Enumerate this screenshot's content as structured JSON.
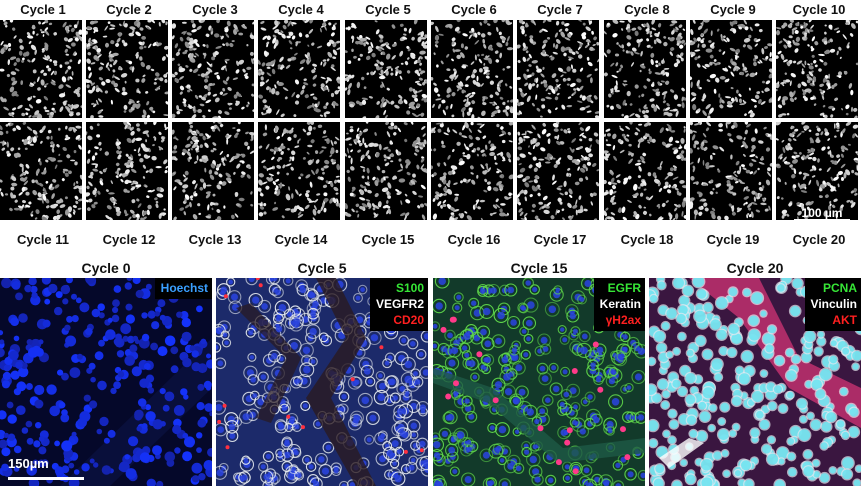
{
  "top_grid": {
    "row1_labels": [
      "Cycle 1",
      "Cycle 2",
      "Cycle 3",
      "Cycle 4",
      "Cycle 5",
      "Cycle 6",
      "Cycle 7",
      "Cycle 8",
      "Cycle 9",
      "Cycle 10"
    ],
    "row2_labels": [
      "Cycle 11",
      "Cycle 12",
      "Cycle 13",
      "Cycle 14",
      "Cycle 15",
      "Cycle 16",
      "Cycle 17",
      "Cycle 18",
      "Cycle 19",
      "Cycle 20"
    ],
    "scale_bar": "100 µm"
  },
  "panels": [
    {
      "title": "Cycle 0",
      "markers": [
        {
          "text": "Hoechst",
          "color": "#3aa0ff"
        }
      ]
    },
    {
      "title": "Cycle 5",
      "markers": [
        {
          "text": "S100",
          "color": "#36e636"
        },
        {
          "text": "VEGFR2",
          "color": "#ffffff"
        },
        {
          "text": "CD20",
          "color": "#ff2020"
        }
      ]
    },
    {
      "title": "Cycle 15",
      "markers": [
        {
          "text": "EGFR",
          "color": "#36e636"
        },
        {
          "text": "Keratin",
          "color": "#ffffff"
        },
        {
          "text": "γH2ax",
          "color": "#ff2020"
        }
      ]
    },
    {
      "title": "Cycle 20",
      "markers": [
        {
          "text": "PCNA",
          "color": "#36e636"
        },
        {
          "text": "Vinculin",
          "color": "#ffffff"
        },
        {
          "text": "AKT",
          "color": "#ff2020"
        }
      ]
    }
  ],
  "bottom_scale_bar": "150µm",
  "colors": {
    "nuclei_blue": "#1a2bd6",
    "membrane_green": "#5fd64a",
    "membrane_white": "#e8ecf0",
    "cyan_nuclei": "#6fe3f0",
    "magenta": "#c0306e"
  }
}
